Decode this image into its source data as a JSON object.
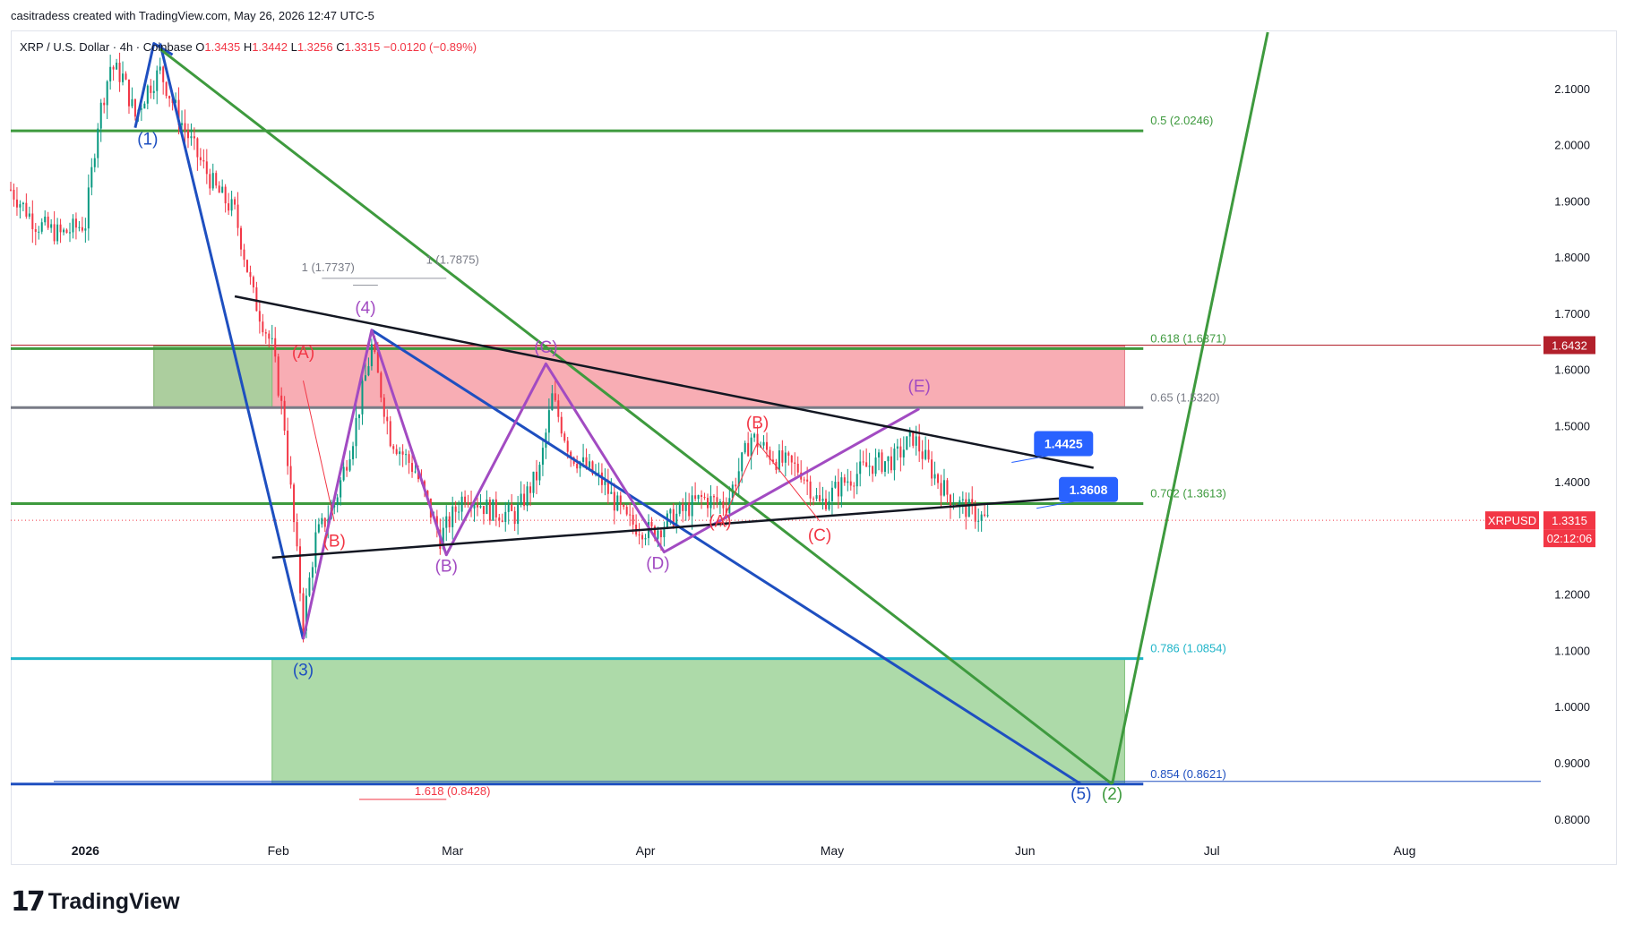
{
  "header": {
    "credit": "casitradess created with TradingView.com, May 26, 2026 12:47 UTC-5"
  },
  "symbol": {
    "name": "XRP / U.S. Dollar · 4h · Coinbase",
    "o_label": "O",
    "o": "1.3435",
    "h_label": "H",
    "h": "1.3442",
    "l_label": "L",
    "l": "1.3256",
    "c_label": "C",
    "c": "1.3315",
    "change": "−0.0120 (−0.89%)"
  },
  "footer": {
    "logo_text": "TradingView",
    "logo_mark": "17"
  },
  "colors": {
    "up": "#089981",
    "down": "#f23645",
    "green_line": "#3e9a3e",
    "blue_line": "#1e4fc0",
    "purple": "#a24bc2",
    "cyan": "#1fb5c9",
    "zone_red": "#f8a9b0",
    "zone_green": "#9fd49a"
  },
  "chart_data": {
    "type": "candlestick",
    "ylim": [
      0.72,
      2.2
    ],
    "y_ticks": [
      "2.1000",
      "2.0000",
      "1.9000",
      "1.8000",
      "1.7000",
      "1.6000",
      "1.5000",
      "1.4000",
      "1.3000",
      "1.2000",
      "1.1000",
      "1.0000",
      "0.9000",
      "0.8000"
    ],
    "x_ticks": [
      {
        "label": "2026",
        "date": "2026-01-01",
        "bold": true
      },
      {
        "label": "Feb",
        "date": "2026-02-01"
      },
      {
        "label": "Mar",
        "date": "2026-03-01"
      },
      {
        "label": "Apr",
        "date": "2026-04-01"
      },
      {
        "label": "May",
        "date": "2026-05-01"
      },
      {
        "label": "Jun",
        "date": "2026-06-01"
      },
      {
        "label": "Jul",
        "date": "2026-07-01"
      },
      {
        "label": "Aug",
        "date": "2026-08-01"
      }
    ],
    "price_path": [
      [
        "2025-12-20",
        1.92
      ],
      [
        "2025-12-24",
        1.86
      ],
      [
        "2025-12-28",
        1.84
      ],
      [
        "2026-01-01",
        1.86
      ],
      [
        "2026-01-03",
        2.04
      ],
      [
        "2026-01-05",
        2.14
      ],
      [
        "2026-01-07",
        2.12
      ],
      [
        "2026-01-09",
        2.05
      ],
      [
        "2026-01-11",
        2.1
      ],
      [
        "2026-01-13",
        2.13
      ],
      [
        "2026-01-16",
        2.05
      ],
      [
        "2026-01-19",
        1.98
      ],
      [
        "2026-01-22",
        1.92
      ],
      [
        "2026-01-25",
        1.88
      ],
      [
        "2026-01-28",
        1.73
      ],
      [
        "2026-01-31",
        1.64
      ],
      [
        "2026-02-02",
        1.5
      ],
      [
        "2026-02-05",
        1.15
      ],
      [
        "2026-02-07",
        1.3
      ],
      [
        "2026-02-10",
        1.36
      ],
      [
        "2026-02-13",
        1.48
      ],
      [
        "2026-02-16",
        1.64
      ],
      [
        "2026-02-19",
        1.48
      ],
      [
        "2026-02-23",
        1.42
      ],
      [
        "2026-02-27",
        1.3
      ],
      [
        "2026-03-03",
        1.38
      ],
      [
        "2026-03-07",
        1.35
      ],
      [
        "2026-03-11",
        1.34
      ],
      [
        "2026-03-15",
        1.42
      ],
      [
        "2026-03-17",
        1.55
      ],
      [
        "2026-03-20",
        1.45
      ],
      [
        "2026-03-25",
        1.4
      ],
      [
        "2026-03-29",
        1.33
      ],
      [
        "2026-04-02",
        1.31
      ],
      [
        "2026-04-06",
        1.34
      ],
      [
        "2026-04-10",
        1.37
      ],
      [
        "2026-04-14",
        1.36
      ],
      [
        "2026-04-18",
        1.48
      ],
      [
        "2026-04-22",
        1.44
      ],
      [
        "2026-04-26",
        1.42
      ],
      [
        "2026-04-29",
        1.36
      ],
      [
        "2026-05-03",
        1.4
      ],
      [
        "2026-05-07",
        1.43
      ],
      [
        "2026-05-11",
        1.44
      ],
      [
        "2026-05-14",
        1.48
      ],
      [
        "2026-05-17",
        1.42
      ],
      [
        "2026-05-20",
        1.37
      ],
      [
        "2026-05-23",
        1.35
      ],
      [
        "2026-05-26",
        1.33
      ]
    ],
    "fib_levels": [
      {
        "label": "0.5 (2.0246)",
        "value": 2.0246,
        "color": "#3e9a3e"
      },
      {
        "label": "0.618 (1.6371)",
        "value": 1.6371,
        "color": "#3e9a3e"
      },
      {
        "label": "0.65 (1.5320)",
        "value": 1.532,
        "color": "#787b86"
      },
      {
        "label": "0.702 (1.3613)",
        "value": 1.3613,
        "color": "#3e9a3e"
      },
      {
        "label": "0.786 (1.0854)",
        "value": 1.0854,
        "color": "#1fb5c9"
      },
      {
        "label": "0.854 (0.8621)",
        "value": 0.8621,
        "color": "#1e4fc0"
      }
    ],
    "extension_labels": [
      {
        "label": "1 (1.7737)",
        "date": "2026-02-09",
        "value": 1.775
      },
      {
        "label": "1 (1.7875)",
        "date": "2026-03-01",
        "value": 1.788
      },
      {
        "label": "1.618 (0.8428)",
        "date": "2026-03-01",
        "value": 0.843
      }
    ],
    "wave_labels": [
      {
        "label": "(1)",
        "date": "2026-01-11",
        "value": 2.0,
        "color": "#1e4fc0"
      },
      {
        "label": "(3)",
        "date": "2026-02-05",
        "value": 1.055,
        "color": "#1e4fc0"
      },
      {
        "label": "(4)",
        "date": "2026-02-15",
        "value": 1.7,
        "color": "#a24bc2"
      },
      {
        "label": "(5)",
        "date": "2026-06-10",
        "value": 0.835,
        "color": "#1e4fc0"
      },
      {
        "label": "(2)",
        "date": "2026-06-15",
        "value": 0.835,
        "color": "#3e9a3e"
      },
      {
        "label": "(A)",
        "date": "2026-02-05",
        "value": 1.62,
        "color": "#f23645"
      },
      {
        "label": "(B)",
        "date": "2026-02-10",
        "value": 1.285,
        "color": "#f23645"
      },
      {
        "label": "(B)",
        "date": "2026-02-28",
        "value": 1.24,
        "color": "#a24bc2"
      },
      {
        "label": "(C)",
        "date": "2026-03-16",
        "value": 1.63,
        "color": "#a24bc2"
      },
      {
        "label": "(D)",
        "date": "2026-04-03",
        "value": 1.245,
        "color": "#a24bc2"
      },
      {
        "label": "(E)",
        "date": "2026-05-15",
        "value": 1.56,
        "color": "#a24bc2"
      },
      {
        "label": "(A)",
        "date": "2026-04-13",
        "value": 1.32,
        "color": "#f23645"
      },
      {
        "label": "(B)",
        "date": "2026-04-19",
        "value": 1.495,
        "color": "#f23645"
      },
      {
        "label": "(C)",
        "date": "2026-04-29",
        "value": 1.295,
        "color": "#f23645"
      }
    ],
    "price_tags": [
      {
        "label": "1.4425",
        "date": "2026-06-01",
        "value": 1.4425
      },
      {
        "label": "1.3608",
        "date": "2026-06-05",
        "value": 1.3608
      }
    ],
    "axis_badges": [
      {
        "label": "1.6432",
        "value": 1.6432,
        "color": "#b2202b"
      },
      {
        "label": "1.3315",
        "value": 1.3315,
        "color": "#f23645",
        "extra": "02:12:06",
        "symbol": "XRPUSD"
      }
    ],
    "zones": [
      {
        "kind": "red",
        "from": "2026-01-12",
        "to": "2026-06-17",
        "top": 1.642,
        "bottom": 1.532
      },
      {
        "kind": "green",
        "from": "2026-01-12",
        "to": "2026-01-31",
        "top": 1.642,
        "bottom": 1.532
      },
      {
        "kind": "green",
        "from": "2026-01-31",
        "to": "2026-06-17",
        "top": 1.0854,
        "bottom": 0.8621
      }
    ]
  }
}
